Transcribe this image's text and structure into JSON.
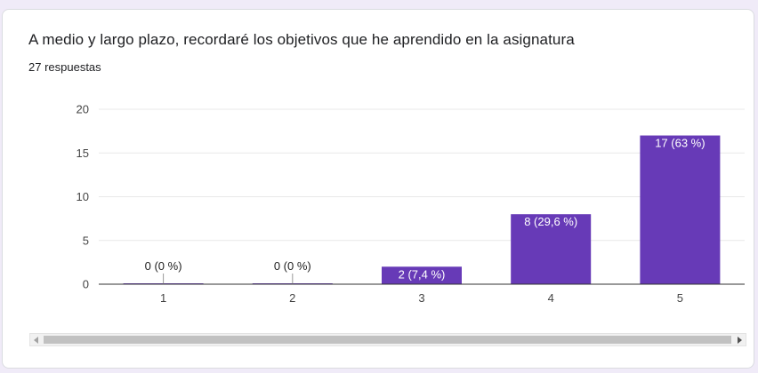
{
  "question": {
    "title": "A medio y largo plazo, recordaré los objetivos que he aprendido en la asignatura",
    "response_count": "27 respuestas"
  },
  "colors": {
    "bar": "#673ab7",
    "grid": "#e8e8e8",
    "axis": "#333333",
    "label_inside": "#ffffff",
    "label_outside": "#222222"
  },
  "chart_data": {
    "type": "bar",
    "categories": [
      "1",
      "2",
      "3",
      "4",
      "5"
    ],
    "values": [
      0,
      0,
      2,
      8,
      17
    ],
    "data_labels": [
      "0 (0 %)",
      "0 (0 %)",
      "2 (7,4 %)",
      "8 (29,6 %)",
      "17 (63 %)"
    ],
    "ylim": [
      0,
      20
    ],
    "yticks": [
      0,
      5,
      10,
      15,
      20
    ],
    "grid": true,
    "title": "",
    "xlabel": "",
    "ylabel": ""
  }
}
